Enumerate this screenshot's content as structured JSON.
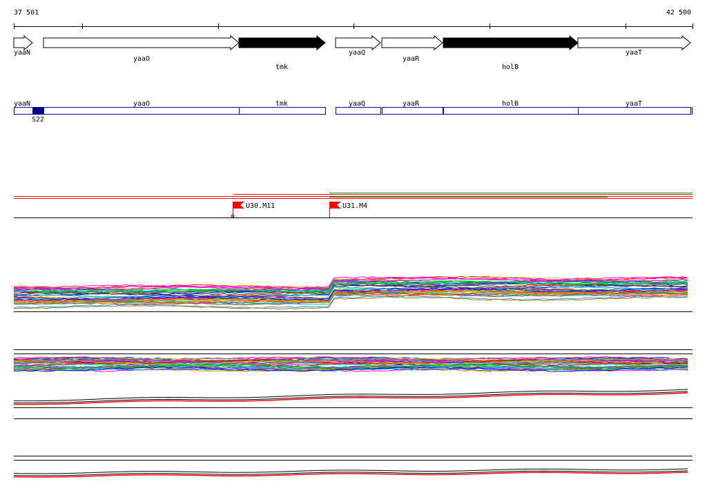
{
  "coordinates": {
    "start_label": "37 501",
    "end_label": "42 500"
  },
  "genes": [
    {
      "name": "yaaN",
      "strand": "+",
      "filled": false
    },
    {
      "name": "yaaO",
      "strand": "+",
      "filled": false
    },
    {
      "name": "tmk",
      "strand": "+",
      "filled": true
    },
    {
      "name": "yaaQ",
      "strand": "+",
      "filled": false
    },
    {
      "name": "yaaR",
      "strand": "+",
      "filled": false
    },
    {
      "name": "holB",
      "strand": "+",
      "filled": true
    },
    {
      "name": "yaaT",
      "strand": "+",
      "filled": false
    }
  ],
  "annotation_track": {
    "segments": [
      "yaaN",
      "yaaO",
      "tmk",
      "yaaQ",
      "yaaR",
      "holB",
      "yaaT"
    ],
    "feature": {
      "label": "S22",
      "color": "#00008b"
    }
  },
  "markers": [
    {
      "name": "U30.M11"
    },
    {
      "name": "U31.M4"
    }
  ],
  "colors": {
    "gene_outline": "#000000",
    "gene_fill_highlight": "#000000",
    "segment_outline": "#0000cc",
    "marker": "#ff0000",
    "track_line_red": "#ff0000",
    "track_line_green": "#00a000"
  }
}
